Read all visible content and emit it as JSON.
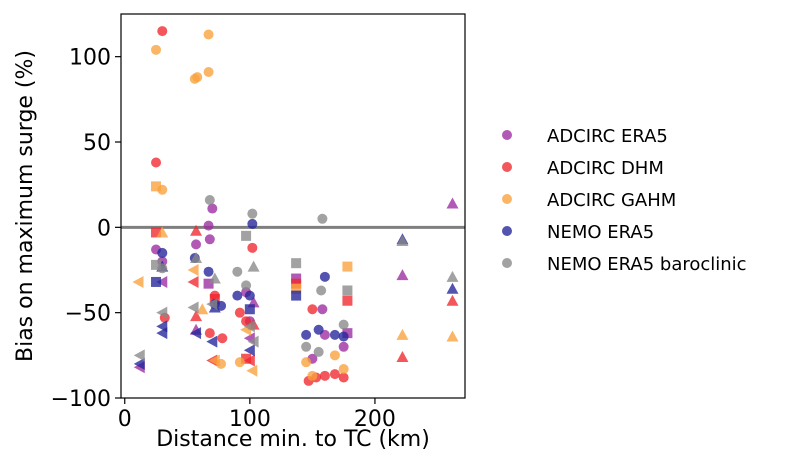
{
  "chart_data": {
    "type": "scatter",
    "title": "",
    "xlabel": "Distance min. to TC (km)",
    "ylabel": "Bias on maximum surge (%)",
    "xlim": [
      -3,
      272
    ],
    "ylim": [
      -100,
      125
    ],
    "xticks": [
      0,
      100,
      200
    ],
    "yticks": [
      -100,
      -50,
      0,
      50,
      100
    ],
    "zero_line": 0,
    "grid": false,
    "legend_position": "right",
    "marker_shapes": {
      "circle": "circle",
      "square": "square",
      "triangle-up": "triangle-up",
      "triangle-left": "triangle-left"
    },
    "series": [
      {
        "name": "ADCIRC ERA5",
        "color": "#9b2ca0",
        "points": [
          {
            "x": 25,
            "y": -13,
            "m": "circle"
          },
          {
            "x": 30,
            "y": -20,
            "m": "circle"
          },
          {
            "x": 57,
            "y": -10,
            "m": "circle"
          },
          {
            "x": 67,
            "y": 1,
            "m": "circle"
          },
          {
            "x": 68,
            "y": -7,
            "m": "circle"
          },
          {
            "x": 70,
            "y": 11,
            "m": "circle"
          },
          {
            "x": 97,
            "y": -38,
            "m": "circle"
          },
          {
            "x": 100,
            "y": -55,
            "m": "circle"
          },
          {
            "x": 158,
            "y": -48,
            "m": "circle"
          },
          {
            "x": 160,
            "y": -63,
            "m": "circle"
          },
          {
            "x": 175,
            "y": -70,
            "m": "circle"
          },
          {
            "x": 150,
            "y": -77,
            "m": "circle"
          },
          {
            "x": 178,
            "y": -62,
            "m": "square"
          },
          {
            "x": 67,
            "y": -33,
            "m": "square"
          },
          {
            "x": 137,
            "y": -30,
            "m": "square"
          },
          {
            "x": 262,
            "y": 14,
            "m": "triangle-up"
          },
          {
            "x": 222,
            "y": -28,
            "m": "triangle-up"
          },
          {
            "x": 103,
            "y": -44,
            "m": "triangle-up"
          },
          {
            "x": 57,
            "y": -60,
            "m": "triangle-up"
          },
          {
            "x": 30,
            "y": -32,
            "m": "triangle-left"
          },
          {
            "x": 12,
            "y": -82,
            "m": "triangle-left"
          },
          {
            "x": 100,
            "y": -65,
            "m": "triangle-left"
          }
        ]
      },
      {
        "name": "ADCIRC DHM",
        "color": "#f0262d",
        "points": [
          {
            "x": 30,
            "y": 115,
            "m": "circle"
          },
          {
            "x": 25,
            "y": 38,
            "m": "circle"
          },
          {
            "x": 102,
            "y": -12,
            "m": "circle"
          },
          {
            "x": 32,
            "y": -53,
            "m": "circle"
          },
          {
            "x": 72,
            "y": -40,
            "m": "circle"
          },
          {
            "x": 68,
            "y": -62,
            "m": "circle"
          },
          {
            "x": 78,
            "y": -65,
            "m": "circle"
          },
          {
            "x": 92,
            "y": -50,
            "m": "circle"
          },
          {
            "x": 97,
            "y": -55,
            "m": "circle"
          },
          {
            "x": 147,
            "y": -90,
            "m": "circle"
          },
          {
            "x": 153,
            "y": -88,
            "m": "circle"
          },
          {
            "x": 160,
            "y": -87,
            "m": "circle"
          },
          {
            "x": 168,
            "y": -86,
            "m": "circle"
          },
          {
            "x": 175,
            "y": -88,
            "m": "circle"
          },
          {
            "x": 150,
            "y": -48,
            "m": "circle"
          },
          {
            "x": 25,
            "y": -3,
            "m": "square"
          },
          {
            "x": 72,
            "y": -42,
            "m": "square"
          },
          {
            "x": 137,
            "y": -33,
            "m": "square"
          },
          {
            "x": 178,
            "y": -43,
            "m": "square"
          },
          {
            "x": 97,
            "y": -77,
            "m": "square"
          },
          {
            "x": 57,
            "y": -2,
            "m": "triangle-up"
          },
          {
            "x": 222,
            "y": -76,
            "m": "triangle-up"
          },
          {
            "x": 262,
            "y": -43,
            "m": "triangle-up"
          },
          {
            "x": 103,
            "y": -57,
            "m": "triangle-up"
          },
          {
            "x": 57,
            "y": -52,
            "m": "triangle-up"
          },
          {
            "x": 70,
            "y": -78,
            "m": "triangle-left"
          },
          {
            "x": 100,
            "y": -78,
            "m": "triangle-left"
          },
          {
            "x": 55,
            "y": -32,
            "m": "triangle-left"
          }
        ]
      },
      {
        "name": "ADCIRC GAHM",
        "color": "#f9a13b",
        "points": [
          {
            "x": 25,
            "y": 104,
            "m": "circle"
          },
          {
            "x": 67,
            "y": 113,
            "m": "circle"
          },
          {
            "x": 56,
            "y": 87,
            "m": "circle"
          },
          {
            "x": 58,
            "y": 88,
            "m": "circle"
          },
          {
            "x": 67,
            "y": 91,
            "m": "circle"
          },
          {
            "x": 30,
            "y": 22,
            "m": "circle"
          },
          {
            "x": 77,
            "y": -80,
            "m": "circle"
          },
          {
            "x": 92,
            "y": -79,
            "m": "circle"
          },
          {
            "x": 150,
            "y": -87,
            "m": "circle"
          },
          {
            "x": 168,
            "y": -75,
            "m": "circle"
          },
          {
            "x": 175,
            "y": -83,
            "m": "circle"
          },
          {
            "x": 145,
            "y": -79,
            "m": "circle"
          },
          {
            "x": 25,
            "y": 24,
            "m": "square"
          },
          {
            "x": 178,
            "y": -23,
            "m": "square"
          },
          {
            "x": 137,
            "y": -36,
            "m": "square"
          },
          {
            "x": 222,
            "y": -63,
            "m": "triangle-up"
          },
          {
            "x": 262,
            "y": -64,
            "m": "triangle-up"
          },
          {
            "x": 62,
            "y": -48,
            "m": "triangle-up"
          },
          {
            "x": 30,
            "y": -3,
            "m": "triangle-up"
          },
          {
            "x": 11,
            "y": -32,
            "m": "triangle-left"
          },
          {
            "x": 72,
            "y": -78,
            "m": "triangle-left"
          },
          {
            "x": 102,
            "y": -84,
            "m": "triangle-left"
          },
          {
            "x": 55,
            "y": -25,
            "m": "triangle-left"
          },
          {
            "x": 97,
            "y": -60,
            "m": "triangle-left"
          }
        ]
      },
      {
        "name": "NEMO ERA5",
        "color": "#22229a",
        "points": [
          {
            "x": 30,
            "y": -15,
            "m": "circle"
          },
          {
            "x": 56,
            "y": -18,
            "m": "circle"
          },
          {
            "x": 67,
            "y": -26,
            "m": "circle"
          },
          {
            "x": 72,
            "y": -45,
            "m": "circle"
          },
          {
            "x": 77,
            "y": -46,
            "m": "circle"
          },
          {
            "x": 90,
            "y": -40,
            "m": "circle"
          },
          {
            "x": 100,
            "y": -40,
            "m": "circle"
          },
          {
            "x": 102,
            "y": 2,
            "m": "circle"
          },
          {
            "x": 145,
            "y": -63,
            "m": "circle"
          },
          {
            "x": 155,
            "y": -60,
            "m": "circle"
          },
          {
            "x": 160,
            "y": -29,
            "m": "circle"
          },
          {
            "x": 168,
            "y": -63,
            "m": "circle"
          },
          {
            "x": 175,
            "y": -64,
            "m": "circle"
          },
          {
            "x": 25,
            "y": -32,
            "m": "square"
          },
          {
            "x": 137,
            "y": -40,
            "m": "square"
          },
          {
            "x": 100,
            "y": -48,
            "m": "square"
          },
          {
            "x": 222,
            "y": -7,
            "m": "triangle-up"
          },
          {
            "x": 262,
            "y": -36,
            "m": "triangle-up"
          },
          {
            "x": 30,
            "y": -23,
            "m": "triangle-up"
          },
          {
            "x": 72,
            "y": -47,
            "m": "triangle-up"
          },
          {
            "x": 30,
            "y": -58,
            "m": "triangle-left"
          },
          {
            "x": 30,
            "y": -62,
            "m": "triangle-left"
          },
          {
            "x": 57,
            "y": -62,
            "m": "triangle-left"
          },
          {
            "x": 70,
            "y": -67,
            "m": "triangle-left"
          },
          {
            "x": 100,
            "y": -72,
            "m": "triangle-left"
          },
          {
            "x": 12,
            "y": -80,
            "m": "triangle-left"
          }
        ]
      },
      {
        "name": "NEMO ERA5 baroclinic",
        "color": "#888888",
        "points": [
          {
            "x": 68,
            "y": 16,
            "m": "circle"
          },
          {
            "x": 102,
            "y": 8,
            "m": "circle"
          },
          {
            "x": 158,
            "y": 5,
            "m": "circle"
          },
          {
            "x": 30,
            "y": -24,
            "m": "circle"
          },
          {
            "x": 90,
            "y": -26,
            "m": "circle"
          },
          {
            "x": 97,
            "y": -34,
            "m": "circle"
          },
          {
            "x": 145,
            "y": -70,
            "m": "circle"
          },
          {
            "x": 155,
            "y": -73,
            "m": "circle"
          },
          {
            "x": 157,
            "y": -37,
            "m": "circle"
          },
          {
            "x": 175,
            "y": -57,
            "m": "circle"
          },
          {
            "x": 25,
            "y": -22,
            "m": "square"
          },
          {
            "x": 97,
            "y": -5,
            "m": "square"
          },
          {
            "x": 137,
            "y": -21,
            "m": "square"
          },
          {
            "x": 178,
            "y": -37,
            "m": "square"
          },
          {
            "x": 222,
            "y": -8,
            "m": "triangle-up"
          },
          {
            "x": 262,
            "y": -29,
            "m": "triangle-up"
          },
          {
            "x": 57,
            "y": -18,
            "m": "triangle-up"
          },
          {
            "x": 103,
            "y": -23,
            "m": "triangle-up"
          },
          {
            "x": 72,
            "y": -30,
            "m": "triangle-up"
          },
          {
            "x": 12,
            "y": -75,
            "m": "triangle-left"
          },
          {
            "x": 30,
            "y": -50,
            "m": "triangle-left"
          },
          {
            "x": 55,
            "y": -47,
            "m": "triangle-left"
          },
          {
            "x": 70,
            "y": -45,
            "m": "triangle-left"
          },
          {
            "x": 100,
            "y": -58,
            "m": "triangle-left"
          },
          {
            "x": 103,
            "y": -67,
            "m": "triangle-left"
          }
        ]
      }
    ]
  }
}
